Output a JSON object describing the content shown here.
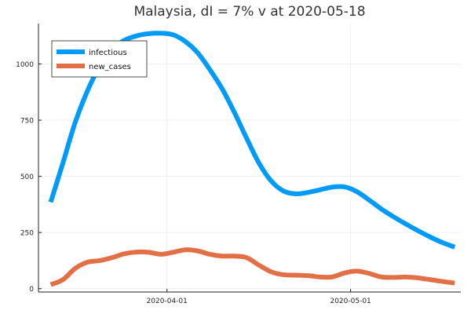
{
  "chart_data": {
    "type": "line",
    "title": "Malaysia,  dI = 7% v at 2020-05-18",
    "xlabel": "",
    "ylabel": "",
    "x_start": "2020-03-13",
    "x_end": "2020-05-18",
    "xlim_days": [
      -21,
      48
    ],
    "ylim": [
      -15,
      1180
    ],
    "grid": true,
    "legend_position": "top-left",
    "x_ticks": [
      {
        "label": "2020-04-01",
        "day": 0
      },
      {
        "label": "2020-05-01",
        "day": 30
      }
    ],
    "y_ticks": [
      {
        "label": "0",
        "value": 0
      },
      {
        "label": "250",
        "value": 250
      },
      {
        "label": "500",
        "value": 500
      },
      {
        "label": "750",
        "value": 750
      },
      {
        "label": "1000",
        "value": 1000
      }
    ],
    "days": [
      -19,
      -17,
      -15,
      -13,
      -11,
      -9,
      -7,
      -5,
      -3,
      -1,
      1,
      3,
      5,
      7,
      9,
      11,
      13,
      15,
      17,
      19,
      21,
      23,
      25,
      27,
      29,
      31,
      33,
      35,
      37,
      39,
      41,
      43,
      45,
      47
    ],
    "series": [
      {
        "name": "infectious",
        "color": "#009af9",
        "values": [
          385,
          560,
          740,
          880,
          990,
          1065,
          1105,
          1125,
          1135,
          1137,
          1130,
          1100,
          1050,
          975,
          890,
          785,
          670,
          560,
          480,
          435,
          422,
          428,
          440,
          452,
          453,
          432,
          395,
          355,
          320,
          288,
          258,
          230,
          205,
          185
        ]
      },
      {
        "name": "new_cases",
        "color": "#e26f46",
        "values": [
          18,
          40,
          90,
          118,
          125,
          138,
          155,
          163,
          162,
          153,
          162,
          173,
          168,
          153,
          145,
          145,
          138,
          105,
          75,
          62,
          60,
          58,
          52,
          52,
          70,
          78,
          68,
          52,
          50,
          52,
          48,
          40,
          32,
          25
        ]
      }
    ]
  }
}
